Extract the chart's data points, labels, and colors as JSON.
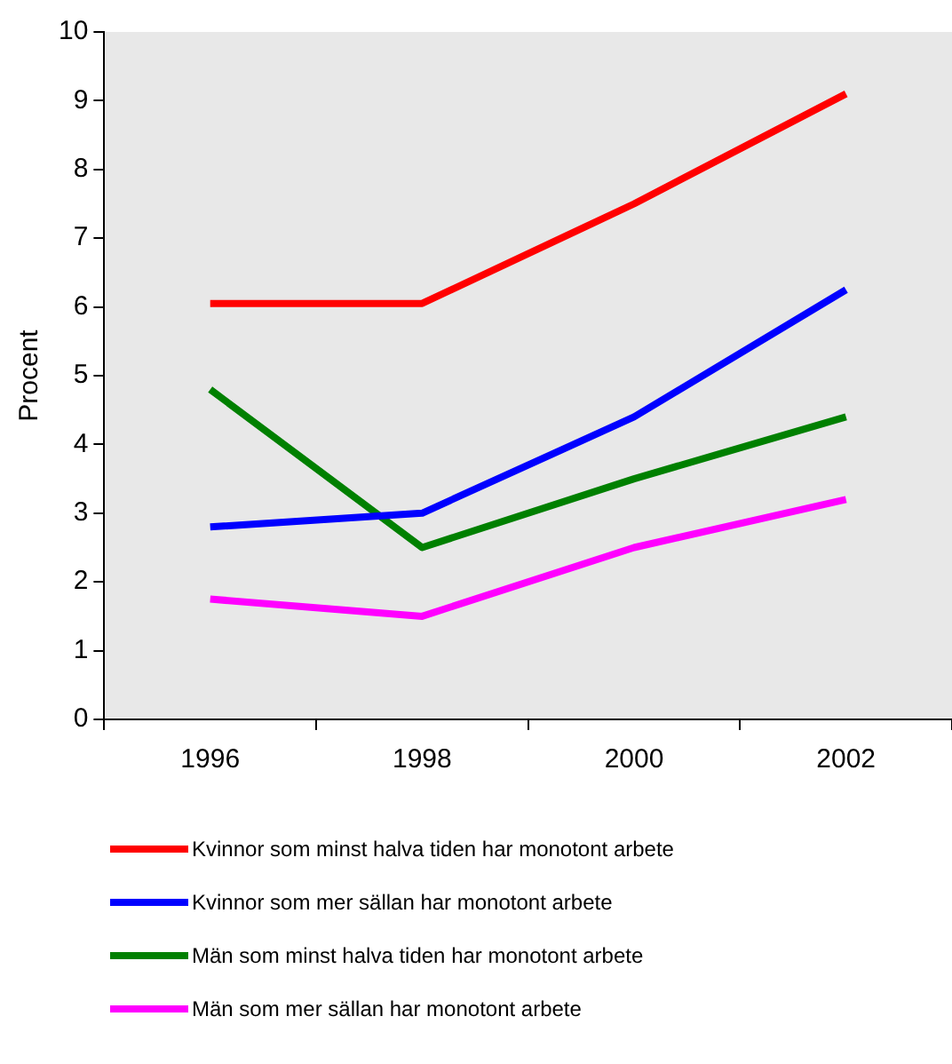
{
  "chart_data": {
    "type": "line",
    "ylabel": "Procent",
    "categories": [
      "1996",
      "1998",
      "2000",
      "2002"
    ],
    "series": [
      {
        "name": "Kvinnor som minst halva tiden har monotont arbete",
        "color": "#ff0000",
        "values": [
          6.05,
          6.05,
          7.5,
          9.1
        ]
      },
      {
        "name": "Kvinnor som mer sällan har monotont arbete",
        "color": "#0000ff",
        "values": [
          2.8,
          3.0,
          4.4,
          6.25
        ]
      },
      {
        "name": "Män som minst halva tiden har monotont arbete",
        "color": "#008000",
        "values": [
          4.8,
          2.5,
          3.5,
          4.4
        ]
      },
      {
        "name": "Män som mer sällan har monotont arbete",
        "color": "#ff00ff",
        "values": [
          1.75,
          1.5,
          2.5,
          3.2
        ]
      }
    ],
    "ylim": [
      0,
      10
    ],
    "yticks": [
      0,
      1,
      2,
      3,
      4,
      5,
      6,
      7,
      8,
      9,
      10
    ],
    "grid": false,
    "legend": "bottom",
    "marker": "none",
    "line_style": "solid"
  }
}
